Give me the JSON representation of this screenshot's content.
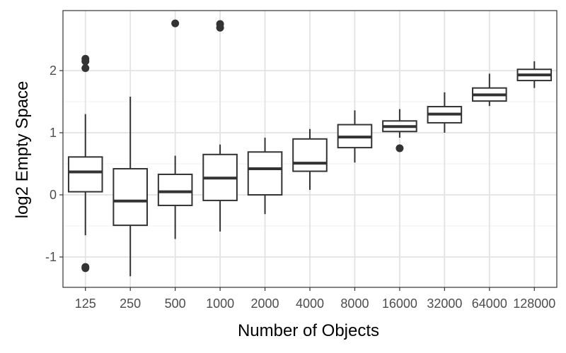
{
  "chart_data": {
    "type": "boxplot",
    "xlabel": "Number of Objects",
    "ylabel": "log2 Empty Space",
    "categories": [
      "125",
      "250",
      "500",
      "1000",
      "2000",
      "4000",
      "8000",
      "16000",
      "32000",
      "64000",
      "128000"
    ],
    "ylim": [
      -1.5,
      2.95
    ],
    "yticks": [
      -1,
      0,
      1,
      2
    ],
    "ytick_labels": [
      "-1",
      "0",
      "1",
      "2"
    ],
    "grid": true,
    "boxes": [
      {
        "category": "125",
        "whisker_low": -0.65,
        "q1": 0.05,
        "median": 0.37,
        "q3": 0.61,
        "whisker_high": 1.3,
        "outliers": [
          2.19,
          2.15,
          2.04,
          -1.16,
          -1.18
        ]
      },
      {
        "category": "250",
        "whisker_low": -1.31,
        "q1": -0.49,
        "median": -0.1,
        "q3": 0.42,
        "whisker_high": 1.58,
        "outliers": []
      },
      {
        "category": "500",
        "whisker_low": -0.71,
        "q1": -0.17,
        "median": 0.05,
        "q3": 0.33,
        "whisker_high": 0.63,
        "outliers": [
          2.76
        ]
      },
      {
        "category": "1000",
        "whisker_low": -0.59,
        "q1": -0.09,
        "median": 0.27,
        "q3": 0.65,
        "whisker_high": 0.81,
        "outliers": [
          2.75,
          2.69
        ]
      },
      {
        "category": "2000",
        "whisker_low": -0.31,
        "q1": 0.0,
        "median": 0.42,
        "q3": 0.69,
        "whisker_high": 0.92,
        "outliers": []
      },
      {
        "category": "4000",
        "whisker_low": 0.08,
        "q1": 0.38,
        "median": 0.51,
        "q3": 0.9,
        "whisker_high": 1.06,
        "outliers": []
      },
      {
        "category": "8000",
        "whisker_low": 0.52,
        "q1": 0.76,
        "median": 0.93,
        "q3": 1.13,
        "whisker_high": 1.36,
        "outliers": []
      },
      {
        "category": "16000",
        "whisker_low": 0.92,
        "q1": 1.02,
        "median": 1.1,
        "q3": 1.19,
        "whisker_high": 1.38,
        "outliers": [
          0.75
        ]
      },
      {
        "category": "32000",
        "whisker_low": 1.0,
        "q1": 1.16,
        "median": 1.3,
        "q3": 1.42,
        "whisker_high": 1.65,
        "outliers": []
      },
      {
        "category": "64000",
        "whisker_low": 1.43,
        "q1": 1.51,
        "median": 1.61,
        "q3": 1.72,
        "whisker_high": 1.95,
        "outliers": []
      },
      {
        "category": "128000",
        "whisker_low": 1.72,
        "q1": 1.84,
        "median": 1.93,
        "q3": 2.02,
        "whisker_high": 2.15,
        "outliers": []
      }
    ]
  }
}
